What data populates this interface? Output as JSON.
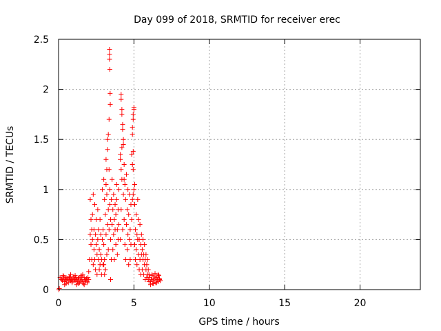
{
  "chart_data": {
    "type": "scatter",
    "title": "Day 099 of 2018, SRMTID for receiver erec",
    "xlabel": "GPS time / hours",
    "ylabel": "SRMTID / TECUs",
    "xlim": [
      0,
      24
    ],
    "ylim": [
      0,
      2.5
    ],
    "xticks": [
      0,
      5,
      10,
      15,
      20
    ],
    "xtick_labels": [
      "0",
      "5",
      "10",
      "15",
      "20"
    ],
    "yticks": [
      0,
      0.5,
      1,
      1.5,
      2,
      2.5
    ],
    "ytick_labels": [
      "0",
      "0.5",
      "1",
      "1.5",
      "2",
      "2.5"
    ],
    "grid": true,
    "marker": "+",
    "series": [
      {
        "name": "SRMTID",
        "color": "#ff0000",
        "x": [
          0.02,
          0.05,
          0.1,
          0.2,
          0.25,
          0.3,
          0.35,
          0.4,
          0.45,
          0.5,
          0.55,
          0.6,
          0.65,
          0.7,
          0.75,
          0.8,
          0.85,
          0.9,
          0.95,
          1.0,
          1.05,
          1.1,
          1.15,
          1.2,
          1.25,
          1.3,
          1.35,
          1.4,
          1.45,
          1.5,
          1.55,
          1.6,
          1.65,
          1.7,
          1.75,
          1.8,
          1.85,
          1.9,
          1.95,
          2.0,
          0.3,
          0.5,
          0.7,
          0.9,
          1.1,
          1.3,
          1.5,
          1.7,
          1.9,
          0.4,
          0.8,
          1.2,
          1.6,
          2.0,
          2.05,
          2.1,
          2.1,
          2.15,
          2.15,
          2.2,
          2.2,
          2.25,
          2.25,
          2.3,
          2.3,
          2.35,
          2.35,
          2.4,
          2.4,
          2.45,
          2.45,
          2.5,
          2.5,
          2.55,
          2.55,
          2.6,
          2.6,
          2.65,
          2.65,
          2.7,
          2.7,
          2.75,
          2.75,
          2.8,
          2.8,
          2.85,
          2.85,
          2.9,
          2.9,
          2.95,
          2.95,
          3.0,
          3.0,
          3.05,
          3.05,
          3.1,
          3.1,
          3.15,
          3.15,
          3.2,
          3.2,
          3.25,
          3.25,
          3.3,
          3.3,
          3.35,
          3.35,
          3.4,
          3.4,
          3.45,
          3.45,
          3.5,
          3.5,
          3.55,
          3.55,
          3.6,
          3.6,
          3.65,
          3.65,
          3.7,
          3.7,
          3.75,
          3.75,
          3.8,
          3.8,
          3.85,
          3.85,
          3.9,
          3.9,
          3.95,
          3.95,
          4.0,
          4.0,
          3.38,
          3.38,
          3.38,
          3.4,
          3.42,
          3.43,
          3.35,
          3.3,
          3.25,
          3.2,
          3.15,
          3.1,
          3.05,
          3.0,
          3.45,
          4.1,
          4.1,
          4.15,
          4.15,
          4.2,
          4.2,
          4.25,
          4.25,
          4.3,
          4.3,
          4.35,
          4.35,
          4.4,
          4.4,
          4.45,
          4.45,
          4.5,
          4.5,
          4.55,
          4.55,
          4.6,
          4.6,
          4.65,
          4.65,
          4.7,
          4.7,
          4.75,
          4.75,
          4.8,
          4.8,
          4.85,
          4.85,
          4.9,
          4.9,
          4.95,
          4.95,
          5.0,
          5.0,
          4.15,
          4.2,
          4.25,
          4.3,
          4.2,
          4.1,
          4.15,
          4.35,
          4.9,
          4.95,
          5.0,
          4.95,
          4.9,
          5.05,
          4.95,
          5.05,
          5.05,
          5.1,
          5.1,
          5.15,
          5.15,
          5.2,
          5.2,
          5.25,
          5.25,
          5.3,
          5.3,
          5.35,
          5.35,
          5.4,
          5.4,
          5.45,
          5.45,
          5.5,
          5.5,
          5.55,
          5.55,
          5.6,
          5.6,
          5.65,
          5.65,
          5.7,
          5.7,
          5.75,
          5.75,
          5.8,
          5.8,
          5.85,
          5.85,
          5.9,
          5.9,
          5.95,
          5.95,
          6.0,
          6.0,
          6.05,
          6.1,
          6.15,
          6.2,
          6.25,
          6.3,
          6.35,
          6.4,
          6.45,
          6.5,
          6.55,
          6.6,
          6.65,
          6.7,
          6.75,
          6.1,
          6.2,
          6.3,
          6.4,
          6.5,
          6.6,
          6.7
        ],
        "y": [
          0.0,
          0.01,
          0.12,
          0.1,
          0.09,
          0.11,
          0.13,
          0.08,
          0.1,
          0.12,
          0.09,
          0.11,
          0.07,
          0.1,
          0.12,
          0.09,
          0.1,
          0.08,
          0.11,
          0.13,
          0.1,
          0.09,
          0.12,
          0.1,
          0.08,
          0.11,
          0.12,
          0.07,
          0.09,
          0.13,
          0.1,
          0.08,
          0.06,
          0.12,
          0.1,
          0.09,
          0.11,
          0.07,
          0.12,
          0.1,
          0.14,
          0.06,
          0.13,
          0.07,
          0.14,
          0.06,
          0.14,
          0.05,
          0.08,
          0.05,
          0.15,
          0.05,
          0.15,
          0.18,
          0.3,
          0.55,
          0.9,
          0.7,
          0.45,
          0.6,
          0.3,
          0.75,
          0.5,
          0.95,
          0.25,
          0.6,
          0.4,
          0.3,
          0.85,
          0.55,
          0.2,
          0.45,
          0.7,
          0.35,
          0.15,
          0.5,
          0.8,
          0.3,
          0.6,
          0.2,
          0.4,
          0.7,
          0.25,
          0.35,
          0.55,
          0.3,
          0.15,
          0.5,
          1.0,
          0.25,
          0.6,
          1.1,
          0.45,
          0.3,
          0.9,
          0.2,
          0.75,
          0.55,
          1.3,
          0.35,
          0.95,
          0.65,
          1.5,
          0.4,
          0.8,
          1.2,
          0.6,
          0.85,
          1.0,
          0.5,
          0.7,
          0.3,
          0.9,
          0.65,
          1.1,
          0.4,
          0.8,
          0.55,
          0.95,
          0.7,
          0.3,
          0.6,
          0.85,
          0.75,
          0.45,
          0.9,
          1.05,
          0.6,
          0.35,
          0.8,
          0.5,
          0.65,
          1.0,
          2.4,
          2.35,
          2.3,
          2.2,
          1.96,
          1.85,
          1.7,
          1.55,
          1.4,
          1.2,
          1.05,
          0.2,
          0.15,
          0.25,
          0.1,
          1.3,
          0.5,
          1.95,
          0.8,
          1.8,
          1.1,
          1.6,
          0.6,
          1.45,
          0.95,
          1.25,
          0.7,
          1.05,
          0.45,
          0.9,
          0.3,
          1.15,
          0.65,
          0.8,
          0.4,
          1.0,
          0.55,
          0.75,
          0.25,
          0.95,
          0.5,
          0.6,
          0.3,
          0.85,
          0.45,
          1.35,
          0.7,
          1.55,
          0.9,
          1.75,
          1.2,
          1.8,
          1.0,
          1.9,
          1.75,
          1.65,
          1.5,
          1.42,
          1.35,
          1.2,
          1.1,
          1.62,
          1.7,
          1.82,
          1.38,
          1.25,
          1.05,
          0.95,
          0.85,
          0.45,
          0.6,
          0.3,
          0.75,
          0.4,
          0.55,
          0.25,
          0.9,
          0.5,
          0.7,
          0.35,
          0.5,
          0.2,
          0.65,
          0.3,
          0.45,
          0.15,
          0.55,
          0.35,
          0.4,
          0.2,
          0.5,
          0.3,
          0.35,
          0.15,
          0.45,
          0.25,
          0.3,
          0.1,
          0.35,
          0.2,
          0.25,
          0.12,
          0.3,
          0.15,
          0.2,
          0.1,
          0.15,
          0.08,
          0.12,
          0.08,
          0.1,
          0.14,
          0.06,
          0.11,
          0.09,
          0.13,
          0.07,
          0.12,
          0.1,
          0.08,
          0.14,
          0.11,
          0.09,
          0.05,
          0.15,
          0.06,
          0.16,
          0.07,
          0.15,
          0.1
        ]
      }
    ]
  }
}
